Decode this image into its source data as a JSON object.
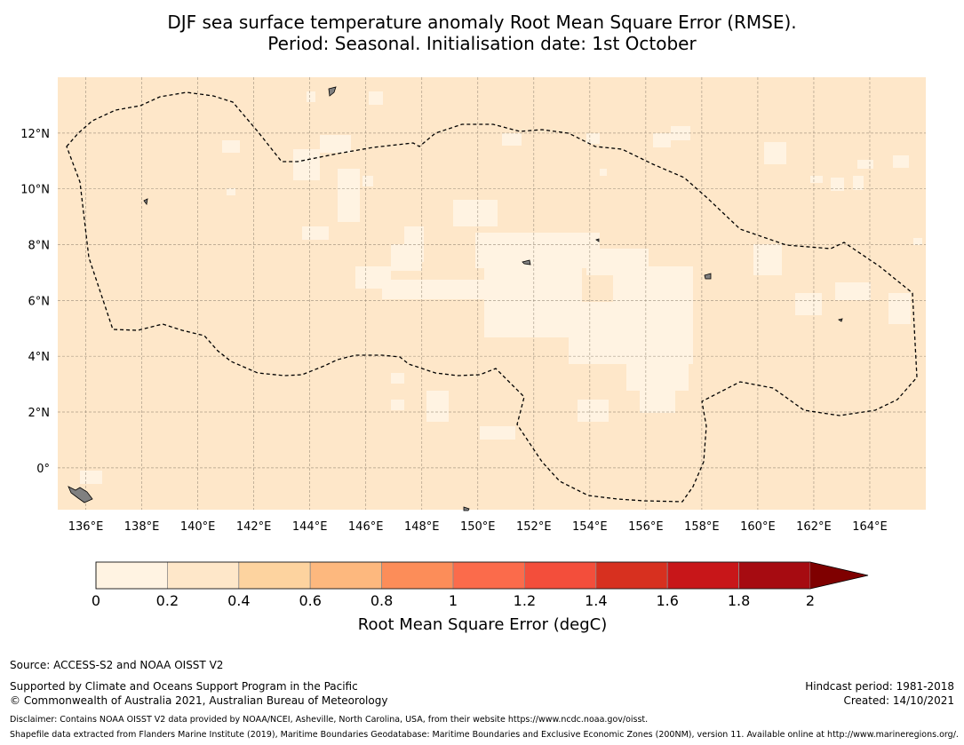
{
  "title": {
    "line1": "DJF sea surface temperature anomaly Root Mean Square Error (RMSE).",
    "line2": "Period: Seasonal. Initialisation date: 1st October"
  },
  "map": {
    "lon_range": [
      135,
      166
    ],
    "lat_range": [
      -1.5,
      14
    ],
    "lon_ticks": [
      136,
      138,
      140,
      142,
      144,
      146,
      148,
      150,
      152,
      154,
      156,
      158,
      160,
      162,
      164
    ],
    "lon_tick_labels": [
      "136°E",
      "138°E",
      "140°E",
      "142°E",
      "144°E",
      "146°E",
      "148°E",
      "150°E",
      "152°E",
      "154°E",
      "156°E",
      "158°E",
      "160°E",
      "162°E",
      "164°E"
    ],
    "lat_ticks": [
      0,
      2,
      4,
      6,
      8,
      10,
      12
    ],
    "lat_tick_labels": [
      "0°",
      "2°N",
      "4°N",
      "6°N",
      "8°N",
      "10°N",
      "12°N"
    ],
    "grid": true,
    "background_color": "#fee7c9",
    "low_value_color": "#fff3e2"
  },
  "colorbar": {
    "label": "Root Mean Square Error (degC)",
    "ticks": [
      "0",
      "0.2",
      "0.4",
      "0.6",
      "0.8",
      "1",
      "1.2",
      "1.4",
      "1.6",
      "1.8",
      "2"
    ],
    "colors": [
      "#fff3e2",
      "#fee7c9",
      "#fdd39f",
      "#fdb87e",
      "#fc8d59",
      "#fb6b4b",
      "#f34e3b",
      "#d7301f",
      "#c81619",
      "#a60b11"
    ],
    "extend_color": "#7f0000",
    "extend": "max"
  },
  "footer": {
    "source": "Source: ACCESS-S2 and NOAA OISST V2",
    "support1": "Supported by Climate and Oceans Support Program in the Pacific",
    "support2": "© Commonwealth of Australia 2021, Australian Bureau of Meteorology",
    "hindcast": "Hindcast period: 1981-2018",
    "created": "Created: 14/10/2021",
    "disclaimer": "Disclaimer: Contains NOAA OISST V2 data provided by NOAA/NCEI, Asheville, North Carolina, USA, from their website https://www.ncdc.noaa.gov/oisst.",
    "shapefile": "Shapefile data extracted from Flanders Marine Institute (2019), Maritime Boundaries Geodatabase: Maritime Boundaries and Exclusive Economic Zones (200NM), version 11. Available online at http://www.marineregions.org/."
  }
}
